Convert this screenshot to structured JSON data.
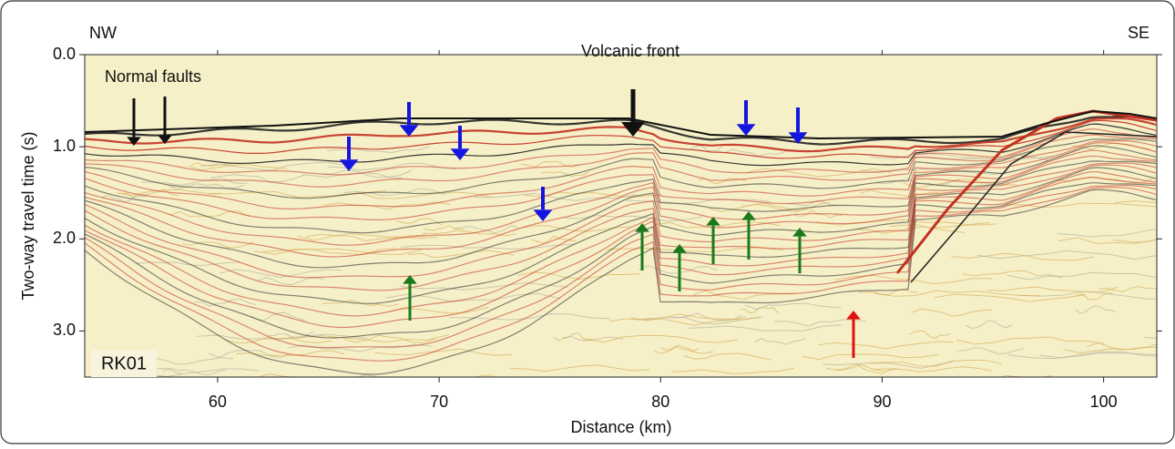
{
  "chart_data": {
    "type": "seismic-section",
    "x_label": "Distance (km)",
    "y_label": "Two-way travel time (s)",
    "xlim": [
      54,
      102.4
    ],
    "xticks": [
      60,
      70,
      80,
      90,
      100
    ],
    "ylim": [
      0,
      3.5
    ],
    "y_inverted": true,
    "yticks": [
      {
        "value": 0,
        "label": "0.0"
      },
      {
        "value": 1,
        "label": "1.0"
      },
      {
        "value": 2,
        "label": "2.0"
      },
      {
        "value": 3,
        "label": "3.0"
      }
    ],
    "annotations": {
      "left_direction": "NW",
      "right_direction": "SE",
      "faults": "Normal faults",
      "front": "Volcanic front",
      "line_name": "RK01"
    }
  }
}
